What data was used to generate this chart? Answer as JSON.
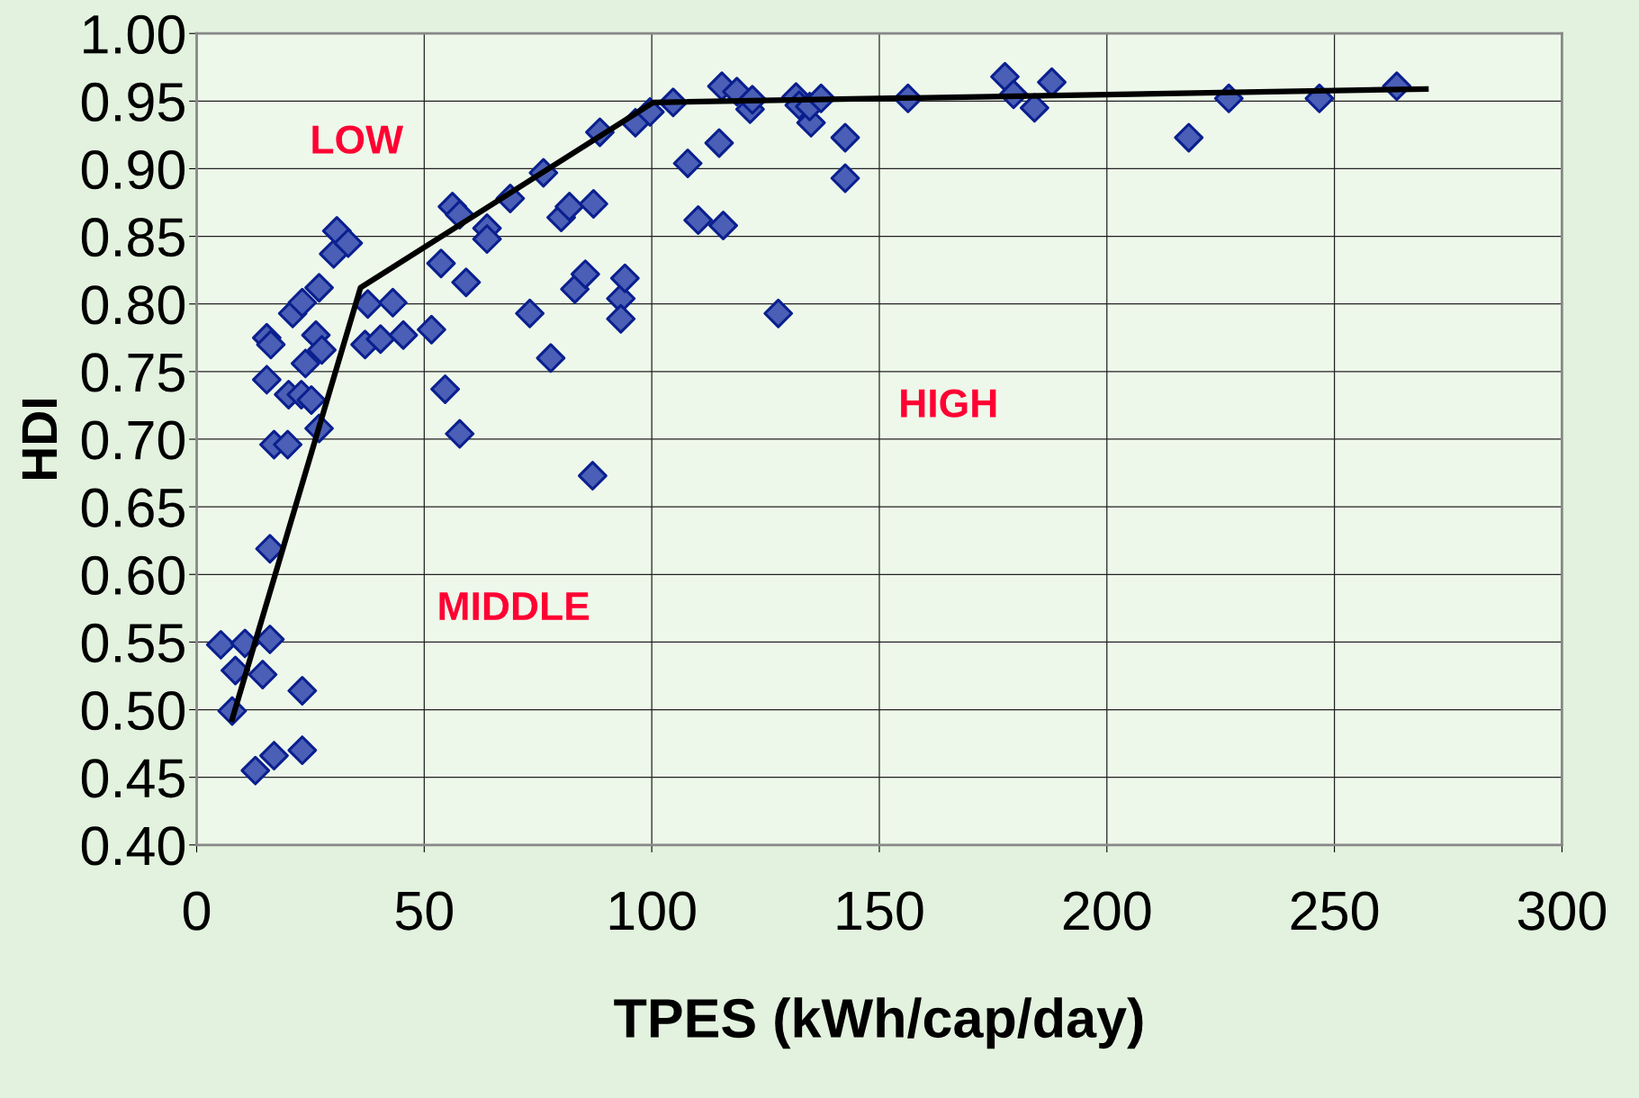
{
  "chart_data": {
    "type": "scatter",
    "xlabel": "TPES (kWh/cap/day)",
    "ylabel": "HDI",
    "xlim": [
      0,
      300
    ],
    "xticks": [
      0,
      50,
      100,
      150,
      200,
      250,
      300
    ],
    "ylim": [
      0.4,
      1.0
    ],
    "yticks": [
      {
        "value": 0.4,
        "label": "0.40"
      },
      {
        "value": 0.45,
        "label": "0.45"
      },
      {
        "value": 0.5,
        "label": "0.50"
      },
      {
        "value": 0.55,
        "label": "0.55"
      },
      {
        "value": 0.6,
        "label": "0.60"
      },
      {
        "value": 0.65,
        "label": "0.65"
      },
      {
        "value": 0.7,
        "label": "0.70"
      },
      {
        "value": 0.75,
        "label": "0.75"
      },
      {
        "value": 0.8,
        "label": "0.80"
      },
      {
        "value": 0.85,
        "label": "0.85"
      },
      {
        "value": 0.9,
        "label": "0.90"
      },
      {
        "value": 0.95,
        "label": "0.95"
      },
      {
        "value": 1.0,
        "label": "1.00"
      }
    ],
    "grid": true,
    "legend": false,
    "annotations": [
      "LOW",
      "HIGH",
      "MIDDLE"
    ],
    "series": [
      {
        "marker": "diamond",
        "color": "#4a5fb5",
        "x": [
          5.3,
          8.5,
          7.8,
          10.6,
          12.9,
          14.5,
          16.1,
          17.0,
          23.2,
          23.2,
          16.1,
          17.0,
          20.0,
          15.4,
          15.4,
          16.3,
          20.2,
          23.0,
          25.2,
          23.9,
          21.1,
          23.2,
          26.9,
          26.2,
          27.5,
          26.9,
          30.1,
          30.8,
          33.3,
          37.6,
          37.0,
          40.4,
          43.1,
          45.4,
          51.6,
          53.7,
          56.2,
          57.8,
          59.2,
          54.6,
          57.8,
          63.8,
          63.8,
          68.9,
          76.2,
          73.2,
          77.8,
          80.1,
          81.9,
          83.1,
          85.4,
          87.2,
          87.0,
          88.6,
          93.2,
          93.2,
          94.1,
          96.4,
          99.6,
          104.7,
          107.9,
          110.2,
          114.8,
          115.4,
          115.7,
          118.7,
          121.6,
          122.1,
          127.8,
          131.7,
          132.4,
          135.0,
          134.7,
          137.2,
          142.5,
          142.5,
          156.3,
          177.6,
          179.5,
          184.1,
          187.9,
          218.0,
          226.8,
          246.7,
          263.7
        ],
        "values": [
          0.548,
          0.529,
          0.499,
          0.549,
          0.455,
          0.526,
          0.552,
          0.466,
          0.47,
          0.514,
          0.619,
          0.696,
          0.696,
          0.744,
          0.775,
          0.77,
          0.733,
          0.733,
          0.729,
          0.756,
          0.793,
          0.801,
          0.812,
          0.777,
          0.766,
          0.708,
          0.837,
          0.854,
          0.845,
          0.8,
          0.77,
          0.774,
          0.801,
          0.777,
          0.781,
          0.83,
          0.872,
          0.866,
          0.816,
          0.737,
          0.704,
          0.856,
          0.848,
          0.878,
          0.897,
          0.793,
          0.76,
          0.864,
          0.872,
          0.811,
          0.822,
          0.874,
          0.673,
          0.927,
          0.804,
          0.789,
          0.819,
          0.934,
          0.942,
          0.949,
          0.904,
          0.862,
          0.919,
          0.961,
          0.858,
          0.957,
          0.944,
          0.951,
          0.793,
          0.953,
          0.947,
          0.934,
          0.946,
          0.952,
          0.923,
          0.893,
          0.952,
          0.968,
          0.955,
          0.945,
          0.964,
          0.923,
          0.952,
          0.952,
          0.961
        ]
      },
      {
        "type": "line",
        "marker": "none",
        "line_style": "solid",
        "color": "#000000",
        "x": [
          7.8,
          36.0,
          100.3,
          270.1
        ],
        "values": [
          0.493,
          0.812,
          0.949,
          0.959
        ]
      }
    ]
  }
}
